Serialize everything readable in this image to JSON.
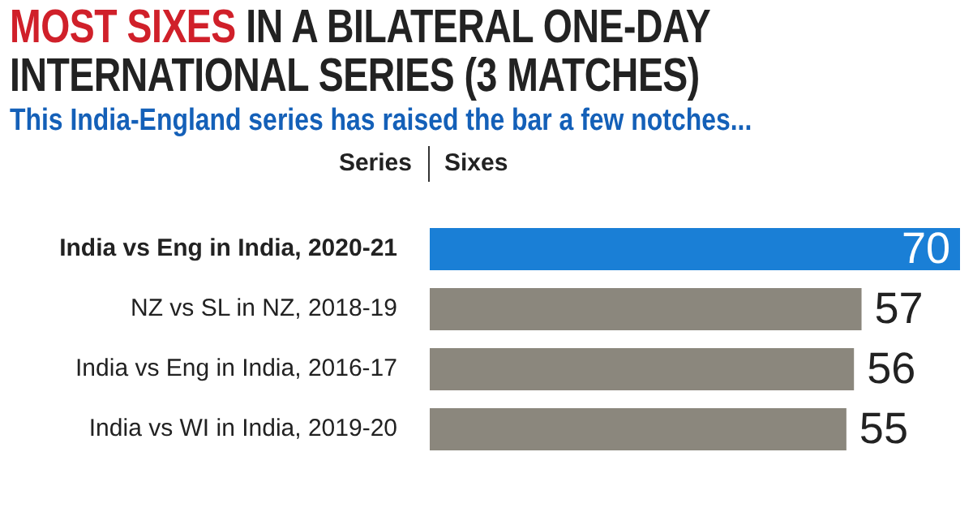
{
  "chart_data": {
    "type": "bar",
    "orientation": "horizontal",
    "title": "MOST SIXES IN A BILATERAL ONE-DAY INTERNATIONAL SERIES (3 MATCHES)",
    "subtitle": "This India-England series has raised the bar a few notches...",
    "ylabel": "Series",
    "xlabel": "Sixes",
    "categories": [
      "India vs Eng in India, 2020-21",
      "NZ vs SL in NZ, 2018-19",
      "India vs Eng in India, 2016-17",
      "India vs WI in India, 2019-20"
    ],
    "values": [
      70,
      57,
      56,
      55
    ],
    "colors": [
      "#1a7fd6",
      "#8b877d",
      "#8b877d",
      "#8b877d"
    ],
    "data_labels": true,
    "grid": false,
    "legend": false
  }
}
